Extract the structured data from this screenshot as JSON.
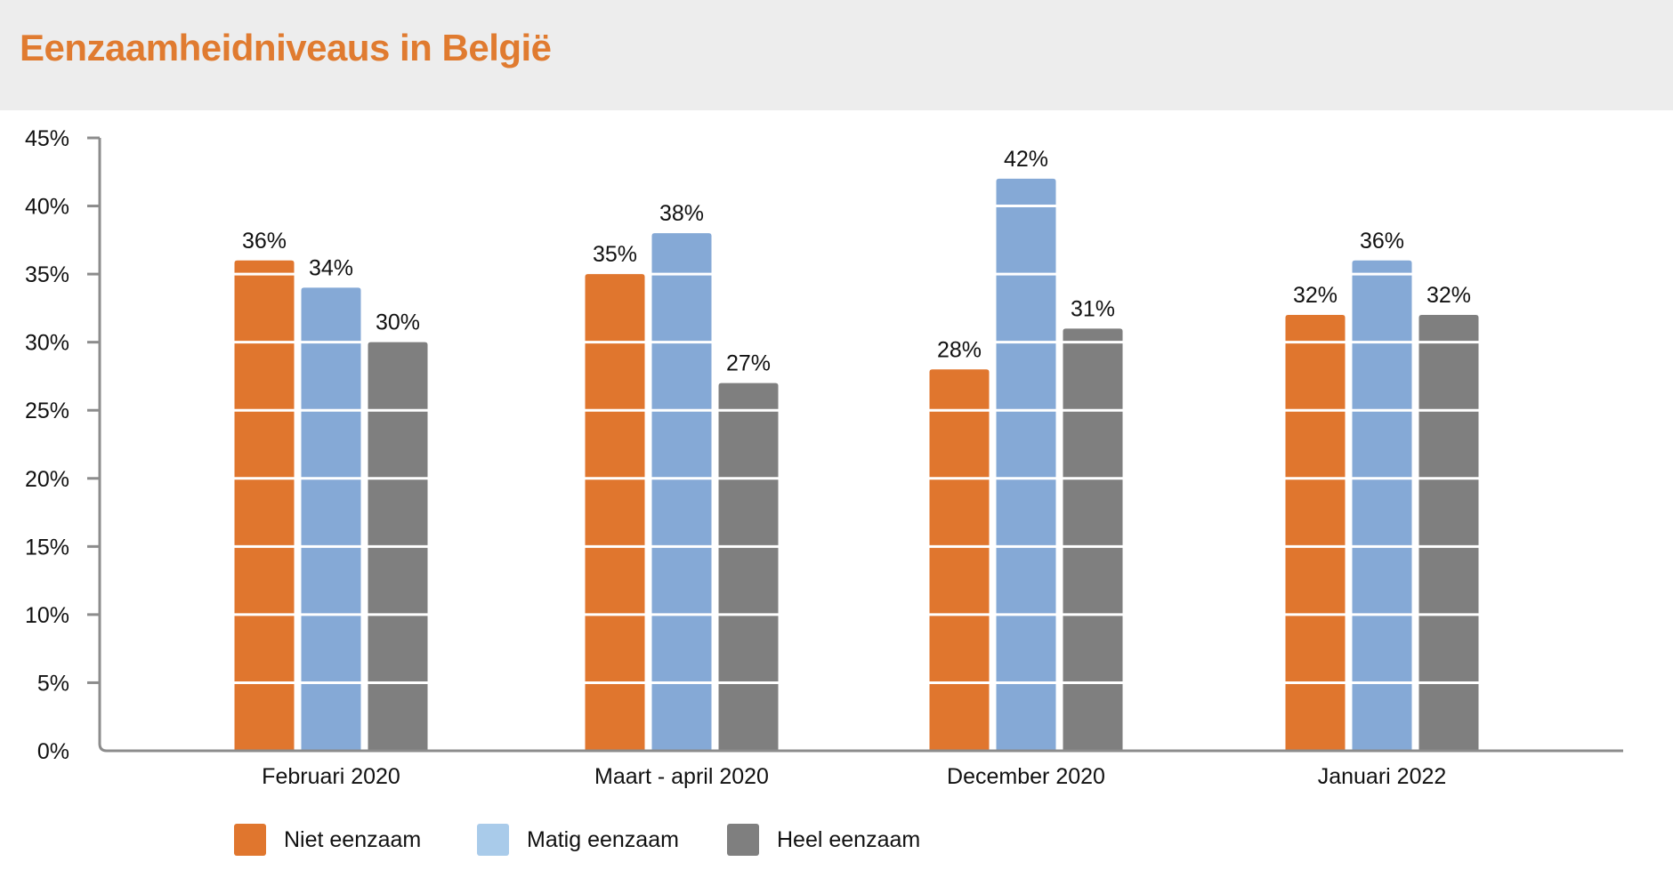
{
  "chart_data": {
    "type": "bar",
    "title": "Eenzaamheidniveaus in België",
    "categories": [
      "Februari 2020",
      "Maart - april 2020",
      "December 2020",
      "Januari 2022"
    ],
    "series": [
      {
        "name": "Niet eenzaam",
        "color": "#e0762e",
        "legend_color": "#e0762e",
        "values": [
          36,
          35,
          28,
          32
        ],
        "labels": [
          "36%",
          "35%",
          "28%",
          "32%"
        ]
      },
      {
        "name": "Matig eenzaam",
        "color": "#85a9d6",
        "legend_color": "#a9cbea",
        "values": [
          34,
          38,
          42,
          36
        ],
        "labels": [
          "34%",
          "38%",
          "42%",
          "36%"
        ]
      },
      {
        "name": "Heel eenzaam",
        "color": "#7f7f7f",
        "legend_color": "#7f7f7f",
        "values": [
          30,
          27,
          31,
          32
        ],
        "labels": [
          "30%",
          "27%",
          "31%",
          "32%"
        ]
      }
    ],
    "ylim": [
      0,
      45
    ],
    "yticks": [
      "0%",
      "5%",
      "10%",
      "15%",
      "20%",
      "25%",
      "30%",
      "35%",
      "40%",
      "45%"
    ],
    "xlabel": "",
    "ylabel": "",
    "grid": false,
    "legend_position": "bottom-left"
  }
}
